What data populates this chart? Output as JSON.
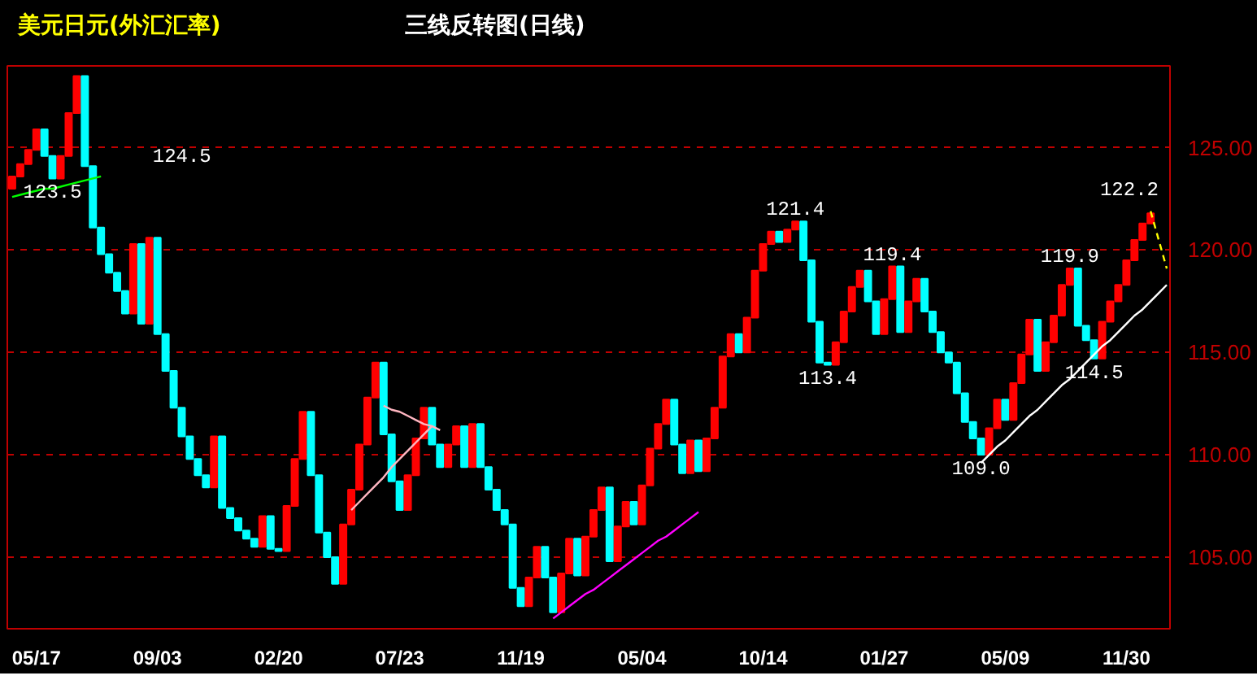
{
  "chart_data": {
    "type": "candlestick",
    "title": "美元日元(外汇汇率)",
    "subtitle": "三线反转图(日线)",
    "categories": [
      null,
      null,
      null,
      "05/17",
      null,
      null,
      null,
      null,
      null,
      null,
      null,
      null,
      null,
      null,
      null,
      null,
      null,
      null,
      "09/03",
      null,
      null,
      null,
      null,
      null,
      null,
      null,
      null,
      null,
      null,
      null,
      null,
      null,
      null,
      "02/20",
      null,
      null,
      null,
      null,
      null,
      null,
      null,
      null,
      null,
      null,
      null,
      null,
      null,
      null,
      "07/23",
      null,
      null,
      null,
      null,
      null,
      null,
      null,
      null,
      null,
      null,
      null,
      null,
      null,
      null,
      "11/19",
      null,
      null,
      null,
      null,
      null,
      null,
      null,
      null,
      null,
      null,
      null,
      null,
      null,
      null,
      "05/04",
      null,
      null,
      null,
      null,
      null,
      null,
      null,
      null,
      null,
      null,
      null,
      null,
      null,
      null,
      "10/14",
      null,
      null,
      null,
      null,
      null,
      null,
      null,
      null,
      null,
      null,
      null,
      null,
      null,
      null,
      "01/27",
      null,
      null,
      null,
      null,
      null,
      null,
      null,
      null,
      null,
      null,
      null,
      null,
      null,
      null,
      "05/09",
      null,
      null,
      null,
      null,
      null,
      null,
      null,
      null,
      null,
      null,
      null,
      null,
      null,
      null,
      "11/30",
      null,
      null,
      null,
      null,
      null
    ],
    "ohlc": [
      [
        123.0,
        123.6,
        123.0,
        123.6
      ],
      [
        123.6,
        124.2,
        123.6,
        124.2
      ],
      [
        124.2,
        124.9,
        124.2,
        124.9
      ],
      [
        124.9,
        125.9,
        124.9,
        125.9
      ],
      [
        125.9,
        125.9,
        124.6,
        124.6
      ],
      [
        124.6,
        124.6,
        123.5,
        123.5
      ],
      [
        123.5,
        124.6,
        123.5,
        124.6
      ],
      [
        124.6,
        126.7,
        124.6,
        126.7
      ],
      [
        126.7,
        128.5,
        126.7,
        128.5
      ],
      [
        128.5,
        128.5,
        124.1,
        124.1
      ],
      [
        124.1,
        124.1,
        121.1,
        121.1
      ],
      [
        121.1,
        121.1,
        119.8,
        119.8
      ],
      [
        119.8,
        119.8,
        118.9,
        118.9
      ],
      [
        118.9,
        118.9,
        118.0,
        118.0
      ],
      [
        118.0,
        118.0,
        116.9,
        116.9
      ],
      [
        116.9,
        120.3,
        116.9,
        120.3
      ],
      [
        120.3,
        120.3,
        116.4,
        116.4
      ],
      [
        116.4,
        120.6,
        116.4,
        120.6
      ],
      [
        120.6,
        120.6,
        115.9,
        115.9
      ],
      [
        115.9,
        115.9,
        114.1,
        114.1
      ],
      [
        114.1,
        114.1,
        112.3,
        112.3
      ],
      [
        112.3,
        112.3,
        110.9,
        110.9
      ],
      [
        110.9,
        110.9,
        109.8,
        109.8
      ],
      [
        109.8,
        109.8,
        109.0,
        109.0
      ],
      [
        109.0,
        109.0,
        108.4,
        108.4
      ],
      [
        108.4,
        110.9,
        108.4,
        110.9
      ],
      [
        110.9,
        110.9,
        107.4,
        107.4
      ],
      [
        107.4,
        107.4,
        106.9,
        106.9
      ],
      [
        106.9,
        106.9,
        106.3,
        106.3
      ],
      [
        106.3,
        106.3,
        105.9,
        105.9
      ],
      [
        105.9,
        105.9,
        105.5,
        105.5
      ],
      [
        105.5,
        107.0,
        105.5,
        107.0
      ],
      [
        107.0,
        107.0,
        105.4,
        105.4
      ],
      [
        105.4,
        105.4,
        105.3,
        105.3
      ],
      [
        105.3,
        107.5,
        105.3,
        107.5
      ],
      [
        107.5,
        109.8,
        107.5,
        109.8
      ],
      [
        109.8,
        112.1,
        109.8,
        112.1
      ],
      [
        112.1,
        112.1,
        109.0,
        109.0
      ],
      [
        109.0,
        109.0,
        106.2,
        106.2
      ],
      [
        106.2,
        106.2,
        105.0,
        105.0
      ],
      [
        105.0,
        105.0,
        103.7,
        103.7
      ],
      [
        103.7,
        106.6,
        103.7,
        106.6
      ],
      [
        106.6,
        108.3,
        106.6,
        108.3
      ],
      [
        108.3,
        110.5,
        108.3,
        110.5
      ],
      [
        110.5,
        112.8,
        110.5,
        112.8
      ],
      [
        112.8,
        114.5,
        112.8,
        114.5
      ],
      [
        114.5,
        114.5,
        111.0,
        111.0
      ],
      [
        111.0,
        111.0,
        108.7,
        108.7
      ],
      [
        108.7,
        108.7,
        107.3,
        107.3
      ],
      [
        107.3,
        109.0,
        107.3,
        109.0
      ],
      [
        109.0,
        110.8,
        109.0,
        110.8
      ],
      [
        110.8,
        112.3,
        110.8,
        112.3
      ],
      [
        112.3,
        112.3,
        110.5,
        110.5
      ],
      [
        110.5,
        110.5,
        109.4,
        109.4
      ],
      [
        109.4,
        110.5,
        109.4,
        110.5
      ],
      [
        110.5,
        111.4,
        110.5,
        111.4
      ],
      [
        111.4,
        111.4,
        109.4,
        109.4
      ],
      [
        109.4,
        111.5,
        109.4,
        111.5
      ],
      [
        111.5,
        111.5,
        109.4,
        109.4
      ],
      [
        109.4,
        109.4,
        108.3,
        108.3
      ],
      [
        108.3,
        108.3,
        107.3,
        107.3
      ],
      [
        107.3,
        107.3,
        106.6,
        106.6
      ],
      [
        106.6,
        106.6,
        103.5,
        103.5
      ],
      [
        103.5,
        103.5,
        102.6,
        102.6
      ],
      [
        102.6,
        104.0,
        102.6,
        104.0
      ],
      [
        104.0,
        105.5,
        104.0,
        105.5
      ],
      [
        105.5,
        105.5,
        104.0,
        104.0
      ],
      [
        104.0,
        104.0,
        102.3,
        102.3
      ],
      [
        102.3,
        104.2,
        102.3,
        104.2
      ],
      [
        104.2,
        105.9,
        104.2,
        105.9
      ],
      [
        105.9,
        105.9,
        104.1,
        104.1
      ],
      [
        104.1,
        106.0,
        104.1,
        106.0
      ],
      [
        106.0,
        107.3,
        106.0,
        107.3
      ],
      [
        107.3,
        108.4,
        107.3,
        108.4
      ],
      [
        108.4,
        108.4,
        104.8,
        104.8
      ],
      [
        104.8,
        106.5,
        104.8,
        106.5
      ],
      [
        106.5,
        107.7,
        106.5,
        107.7
      ],
      [
        107.7,
        107.7,
        106.6,
        106.6
      ],
      [
        106.6,
        108.5,
        106.6,
        108.5
      ],
      [
        108.5,
        110.3,
        108.5,
        110.3
      ],
      [
        110.3,
        111.5,
        110.3,
        111.5
      ],
      [
        111.5,
        112.7,
        111.5,
        112.7
      ],
      [
        112.7,
        112.7,
        110.5,
        110.5
      ],
      [
        110.5,
        110.5,
        109.1,
        109.1
      ],
      [
        109.1,
        110.7,
        109.1,
        110.7
      ],
      [
        110.7,
        110.7,
        109.2,
        109.2
      ],
      [
        109.2,
        110.8,
        109.2,
        110.8
      ],
      [
        110.8,
        112.3,
        110.8,
        112.3
      ],
      [
        112.3,
        114.8,
        112.3,
        114.8
      ],
      [
        114.8,
        115.9,
        114.8,
        115.9
      ],
      [
        115.9,
        115.9,
        115.0,
        115.0
      ],
      [
        115.0,
        116.7,
        115.0,
        116.7
      ],
      [
        116.7,
        119.0,
        116.7,
        119.0
      ],
      [
        119.0,
        120.3,
        119.0,
        120.3
      ],
      [
        120.3,
        120.9,
        120.3,
        120.9
      ],
      [
        120.9,
        120.9,
        120.4,
        120.4
      ],
      [
        120.4,
        121.0,
        120.4,
        121.0
      ],
      [
        121.0,
        121.4,
        121.0,
        121.4
      ],
      [
        121.4,
        121.4,
        119.5,
        119.5
      ],
      [
        119.5,
        119.5,
        116.5,
        116.5
      ],
      [
        116.5,
        116.5,
        114.5,
        114.5
      ],
      [
        114.5,
        114.5,
        114.4,
        114.4
      ],
      [
        114.4,
        115.5,
        114.4,
        115.5
      ],
      [
        115.5,
        117.0,
        115.5,
        117.0
      ],
      [
        117.0,
        118.2,
        117.0,
        118.2
      ],
      [
        118.2,
        119.0,
        118.2,
        119.0
      ],
      [
        119.0,
        119.0,
        117.5,
        117.5
      ],
      [
        117.5,
        117.5,
        115.9,
        115.9
      ],
      [
        115.9,
        117.6,
        115.9,
        117.6
      ],
      [
        117.6,
        119.2,
        117.6,
        119.2
      ],
      [
        119.2,
        119.2,
        116.0,
        116.0
      ],
      [
        116.0,
        117.5,
        116.0,
        117.5
      ],
      [
        117.5,
        118.6,
        117.5,
        118.6
      ],
      [
        118.6,
        118.6,
        117.0,
        117.0
      ],
      [
        117.0,
        117.0,
        116.0,
        116.0
      ],
      [
        116.0,
        116.0,
        115.0,
        115.0
      ],
      [
        115.0,
        115.0,
        114.5,
        114.5
      ],
      [
        114.5,
        114.5,
        113.0,
        113.0
      ],
      [
        113.0,
        113.0,
        111.6,
        111.6
      ],
      [
        111.6,
        111.6,
        110.8,
        110.8
      ],
      [
        110.8,
        110.8,
        110.0,
        110.0
      ],
      [
        110.0,
        111.3,
        110.0,
        111.3
      ],
      [
        111.3,
        112.7,
        111.3,
        112.7
      ],
      [
        112.7,
        112.7,
        111.7,
        111.7
      ],
      [
        111.7,
        113.5,
        111.7,
        113.5
      ],
      [
        113.5,
        114.9,
        113.5,
        114.9
      ],
      [
        114.9,
        116.6,
        114.9,
        116.6
      ],
      [
        116.6,
        116.6,
        114.1,
        114.1
      ],
      [
        114.1,
        115.5,
        114.1,
        115.5
      ],
      [
        115.5,
        116.8,
        115.5,
        116.8
      ],
      [
        116.8,
        118.3,
        116.8,
        118.3
      ],
      [
        118.3,
        119.1,
        118.3,
        119.1
      ],
      [
        119.1,
        119.1,
        116.3,
        116.3
      ],
      [
        116.3,
        116.3,
        115.6,
        115.6
      ],
      [
        115.6,
        115.6,
        114.7,
        114.7
      ],
      [
        114.7,
        116.5,
        114.7,
        116.5
      ],
      [
        116.5,
        117.5,
        116.5,
        117.5
      ],
      [
        117.5,
        118.3,
        117.5,
        118.3
      ],
      [
        118.3,
        119.5,
        118.3,
        119.5
      ],
      [
        119.5,
        120.5,
        119.5,
        120.5
      ],
      [
        120.5,
        121.3,
        120.5,
        121.3
      ],
      [
        121.3,
        121.8,
        121.3,
        121.8
      ],
      null,
      null
    ],
    "colors": [
      "#ff0000",
      "#ff0000",
      "#ff0000",
      "#ff0000",
      "#00ffff",
      "#00ffff",
      "#ff0000",
      "#ff0000",
      "#ff0000",
      "#00ffff",
      "#00ffff",
      "#00ffff",
      "#00ffff",
      "#00ffff",
      "#00ffff",
      "#ff0000",
      "#00ffff",
      "#ff0000",
      "#00ffff",
      "#00ffff",
      "#00ffff",
      "#00ffff",
      "#00ffff",
      "#00ffff",
      "#00ffff",
      "#ff0000",
      "#00ffff",
      "#00ffff",
      "#00ffff",
      "#00ffff",
      "#00ffff",
      "#ff0000",
      "#00ffff",
      "#00ffff",
      "#ff0000",
      "#ff0000",
      "#ff0000",
      "#00ffff",
      "#00ffff",
      "#00ffff",
      "#00ffff",
      "#ff0000",
      "#ff0000",
      "#ff0000",
      "#ff0000",
      "#ff0000",
      "#00ffff",
      "#00ffff",
      "#00ffff",
      "#ff0000",
      "#ff0000",
      "#ff0000",
      "#00ffff",
      "#00ffff",
      "#ff0000",
      "#ff0000",
      "#00ffff",
      "#ff0000",
      "#00ffff",
      "#00ffff",
      "#00ffff",
      "#00ffff",
      "#00ffff",
      "#00ffff",
      "#ff0000",
      "#ff0000",
      "#00ffff",
      "#00ffff",
      "#ff0000",
      "#ff0000",
      "#00ffff",
      "#ff0000",
      "#ff0000",
      "#ff0000",
      "#00ffff",
      "#ff0000",
      "#ff0000",
      "#00ffff",
      "#ff0000",
      "#ff0000",
      "#ff0000",
      "#ff0000",
      "#00ffff",
      "#00ffff",
      "#ff0000",
      "#00ffff",
      "#ff0000",
      "#ff0000",
      "#ff0000",
      "#ff0000",
      "#00ffff",
      "#ff0000",
      "#ff0000",
      "#ff0000",
      "#ff0000",
      "#00ffff",
      "#ff0000",
      "#ff0000",
      "#00ffff",
      "#00ffff",
      "#00ffff",
      "#00ffff",
      "#ff0000",
      "#ff0000",
      "#ff0000",
      "#ff0000",
      "#00ffff",
      "#00ffff",
      "#ff0000",
      "#ff0000",
      "#00ffff",
      "#ff0000",
      "#ff0000",
      "#00ffff",
      "#00ffff",
      "#00ffff",
      "#00ffff",
      "#00ffff",
      "#00ffff",
      "#00ffff",
      "#00ffff",
      "#ff0000",
      "#ff0000",
      "#00ffff",
      "#ff0000",
      "#ff0000",
      "#ff0000",
      "#00ffff",
      "#ff0000",
      "#ff0000",
      "#ff0000",
      "#ff0000",
      "#00ffff",
      "#00ffff",
      "#00ffff",
      "#ff0000",
      "#ff0000",
      "#ff0000",
      "#ff0000",
      "#ff0000",
      "#ff0000",
      "#ff0000",
      null,
      null
    ],
    "series": [
      {
        "type": "line",
        "color": "#00ff00",
        "values": [
          122.6,
          122.7,
          122.8,
          122.9,
          123.0,
          123.0,
          123.1,
          123.2,
          123.3,
          123.4,
          123.5,
          123.6,
          null,
          null,
          null,
          null,
          null,
          null,
          null,
          null,
          null,
          null,
          null,
          null,
          null,
          null,
          null,
          null,
          null,
          null,
          null,
          null,
          null,
          null,
          null,
          null,
          null,
          null,
          null,
          null,
          null,
          null,
          null,
          null,
          null,
          null,
          null,
          null,
          null,
          null,
          null,
          null,
          null,
          null,
          null,
          null,
          null,
          null,
          null,
          null,
          null,
          null,
          null,
          null,
          null,
          null,
          null,
          null,
          null,
          null,
          null,
          null,
          null,
          null,
          null,
          null,
          null,
          null,
          null,
          null,
          null,
          null,
          null,
          null,
          null,
          null,
          null,
          null,
          null,
          null,
          null,
          null,
          null,
          null,
          null,
          null,
          null,
          null,
          null,
          null,
          null,
          null,
          null,
          null,
          null,
          null,
          null,
          null,
          null,
          null,
          null,
          null,
          null,
          null,
          null,
          null,
          null,
          null,
          null,
          null,
          null,
          null,
          null,
          null,
          null,
          null,
          null,
          null,
          null,
          null,
          null,
          null,
          null,
          null,
          null,
          null,
          null,
          null,
          null,
          null,
          null,
          null,
          null,
          null
        ]
      },
      {
        "type": "line",
        "color": "#ffb6c1",
        "values": [
          null,
          null,
          null,
          null,
          null,
          null,
          null,
          null,
          null,
          null,
          null,
          null,
          null,
          null,
          null,
          null,
          null,
          null,
          null,
          null,
          null,
          null,
          null,
          null,
          null,
          null,
          null,
          null,
          null,
          null,
          null,
          null,
          null,
          null,
          null,
          null,
          null,
          null,
          null,
          null,
          null,
          null,
          null,
          null,
          null,
          null,
          112.4,
          112.2,
          112.1,
          111.9,
          111.7,
          111.5,
          111.4,
          111.2,
          null,
          null,
          null,
          null,
          null,
          null,
          null,
          null,
          null,
          null,
          null,
          null,
          null,
          null,
          null,
          null,
          null,
          null,
          null,
          null,
          null,
          null,
          null,
          null,
          null,
          null,
          null,
          null,
          null,
          null,
          null,
          null,
          null,
          null,
          null,
          null,
          null,
          null,
          null,
          null,
          null,
          null,
          null,
          null,
          null,
          null,
          null,
          null,
          null,
          null,
          null,
          null,
          null,
          null,
          null,
          null,
          null,
          null,
          null,
          null,
          null,
          null,
          null,
          null,
          null,
          null,
          null,
          null,
          null,
          null,
          null,
          null,
          null,
          null,
          null,
          null,
          null,
          null,
          null,
          null,
          null,
          null,
          null,
          null,
          null,
          null,
          null,
          null,
          null,
          null
        ]
      },
      {
        "type": "line",
        "color": "#ffb6c1",
        "values": [
          null,
          null,
          null,
          null,
          null,
          null,
          null,
          null,
          null,
          null,
          null,
          null,
          null,
          null,
          null,
          null,
          null,
          null,
          null,
          null,
          null,
          null,
          null,
          null,
          null,
          null,
          null,
          null,
          null,
          null,
          null,
          null,
          null,
          null,
          null,
          null,
          null,
          null,
          null,
          null,
          null,
          null,
          107.3,
          107.7,
          108.1,
          108.5,
          108.9,
          109.4,
          109.8,
          110.2,
          110.6,
          111.0,
          111.4,
          null,
          null,
          null,
          null,
          null,
          null,
          null,
          null,
          null,
          null,
          null,
          null,
          null,
          null,
          null,
          null,
          null,
          null,
          null,
          null,
          null,
          null,
          null,
          null,
          null,
          null,
          null,
          null,
          null,
          null,
          null,
          null,
          null,
          null,
          null,
          null,
          null,
          null,
          null,
          null,
          null,
          null,
          null,
          null,
          null,
          null,
          null,
          null,
          null,
          null,
          null,
          null,
          null,
          null,
          null,
          null,
          null,
          null,
          null,
          null,
          null,
          null,
          null,
          null,
          null,
          null,
          null,
          null,
          null,
          null,
          null,
          null,
          null,
          null,
          null,
          null,
          null,
          null,
          null,
          null,
          null,
          null,
          null,
          null,
          null,
          null,
          null,
          null,
          null,
          null,
          null
        ]
      },
      {
        "type": "line",
        "color": "#ff00ff",
        "values": [
          null,
          null,
          null,
          null,
          null,
          null,
          null,
          null,
          null,
          null,
          null,
          null,
          null,
          null,
          null,
          null,
          null,
          null,
          null,
          null,
          null,
          null,
          null,
          null,
          null,
          null,
          null,
          null,
          null,
          null,
          null,
          null,
          null,
          null,
          null,
          null,
          null,
          null,
          null,
          null,
          null,
          null,
          null,
          null,
          null,
          null,
          null,
          null,
          null,
          null,
          null,
          null,
          null,
          null,
          null,
          null,
          null,
          null,
          null,
          null,
          null,
          null,
          null,
          null,
          null,
          null,
          null,
          102.0,
          102.3,
          102.6,
          102.9,
          103.2,
          103.4,
          103.7,
          104.0,
          104.3,
          104.6,
          104.9,
          105.2,
          105.5,
          105.8,
          106.0,
          106.3,
          106.6,
          106.9,
          107.2,
          null,
          null,
          null,
          null,
          null,
          null,
          null,
          null,
          null,
          null,
          null,
          null,
          null,
          null,
          null,
          null,
          null,
          null,
          null,
          null,
          null,
          null,
          null,
          null,
          null,
          null,
          null,
          null,
          null,
          null,
          null,
          null,
          null,
          null,
          null,
          null,
          null,
          null,
          null,
          null,
          null,
          null,
          null,
          null,
          null,
          null,
          null,
          null,
          null,
          null,
          null,
          null,
          null,
          null,
          null,
          null,
          null,
          null
        ]
      },
      {
        "type": "line",
        "color": "#ffffff",
        "values": [
          null,
          null,
          null,
          null,
          null,
          null,
          null,
          null,
          null,
          null,
          null,
          null,
          null,
          null,
          null,
          null,
          null,
          null,
          null,
          null,
          null,
          null,
          null,
          null,
          null,
          null,
          null,
          null,
          null,
          null,
          null,
          null,
          null,
          null,
          null,
          null,
          null,
          null,
          null,
          null,
          null,
          null,
          null,
          null,
          null,
          null,
          null,
          null,
          null,
          null,
          null,
          null,
          null,
          null,
          null,
          null,
          null,
          null,
          null,
          null,
          null,
          null,
          null,
          null,
          null,
          null,
          null,
          null,
          null,
          null,
          null,
          null,
          null,
          null,
          null,
          null,
          null,
          null,
          null,
          null,
          null,
          null,
          null,
          null,
          null,
          null,
          null,
          null,
          null,
          null,
          null,
          null,
          null,
          null,
          null,
          null,
          null,
          null,
          null,
          null,
          null,
          null,
          null,
          null,
          null,
          null,
          null,
          null,
          null,
          null,
          null,
          null,
          null,
          null,
          null,
          null,
          null,
          null,
          null,
          null,
          109.6,
          110.0,
          110.4,
          110.7,
          111.1,
          111.5,
          111.9,
          112.2,
          112.6,
          113.0,
          113.4,
          113.7,
          114.1,
          114.5,
          114.9,
          115.3,
          115.6,
          116.0,
          116.4,
          116.8,
          117.1,
          117.5,
          117.9,
          118.3
        ]
      },
      {
        "type": "line",
        "color": "#ffff00",
        "line_style": "dashed",
        "values": [
          null,
          null,
          null,
          null,
          null,
          null,
          null,
          null,
          null,
          null,
          null,
          null,
          null,
          null,
          null,
          null,
          null,
          null,
          null,
          null,
          null,
          null,
          null,
          null,
          null,
          null,
          null,
          null,
          null,
          null,
          null,
          null,
          null,
          null,
          null,
          null,
          null,
          null,
          null,
          null,
          null,
          null,
          null,
          null,
          null,
          null,
          null,
          null,
          null,
          null,
          null,
          null,
          null,
          null,
          null,
          null,
          null,
          null,
          null,
          null,
          null,
          null,
          null,
          null,
          null,
          null,
          null,
          null,
          null,
          null,
          null,
          null,
          null,
          null,
          null,
          null,
          null,
          null,
          null,
          null,
          null,
          null,
          null,
          null,
          null,
          null,
          null,
          null,
          null,
          null,
          null,
          null,
          null,
          null,
          null,
          null,
          null,
          null,
          null,
          null,
          null,
          null,
          null,
          null,
          null,
          null,
          null,
          null,
          null,
          null,
          null,
          null,
          null,
          null,
          null,
          null,
          null,
          null,
          null,
          null,
          null,
          null,
          null,
          null,
          null,
          null,
          null,
          null,
          null,
          null,
          null,
          null,
          null,
          null,
          null,
          null,
          null,
          null,
          null,
          null,
          null,
          121.9,
          120.5,
          119.1
        ]
      }
    ],
    "annotations": [
      {
        "text": "123.5",
        "y": 123.5
      },
      "124.5",
      {
        "text": "121.4",
        "y": 121.4
      },
      {
        "text": "113.4",
        "y": 114.4
      },
      {
        "text": "119.4",
        "y": 119.2
      },
      {
        "text": "109.0",
        "y": 110.0
      },
      {
        "text": "119.9",
        "y": 119.1
      },
      {
        "text": "114.5",
        "y": 114.7
      },
      "122.2"
    ],
    "ylim": [
      101.5,
      129.0
    ],
    "yticks": [
      {
        "value": 105,
        "label": "105.00"
      },
      {
        "value": 110,
        "label": "110.00"
      },
      {
        "value": 115,
        "label": "115.00"
      },
      {
        "value": 120,
        "label": "120.00"
      },
      {
        "value": 125,
        "label": "125.00"
      }
    ],
    "grid": "y"
  }
}
